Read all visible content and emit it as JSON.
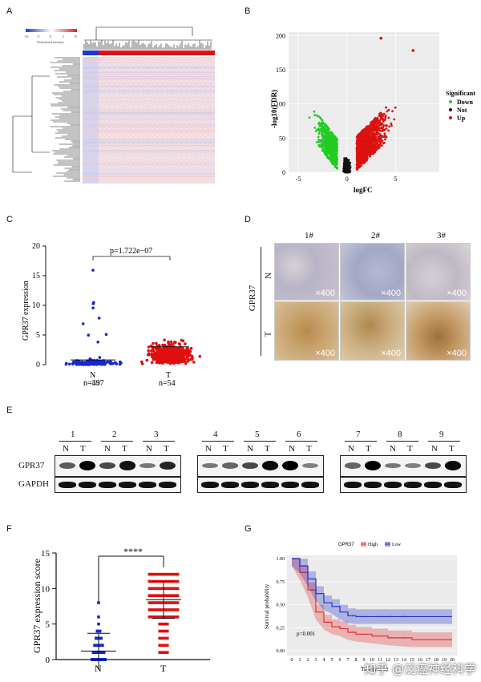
{
  "panels": {
    "a": "A",
    "b": "B",
    "c": "C",
    "d": "D",
    "e": "E",
    "f": "F",
    "g": "G"
  },
  "panel_a": {
    "legend_ticks": [
      "-10",
      "-5",
      "0",
      "5",
      "10"
    ],
    "legend_label": "Normalized intensity",
    "colors": {
      "low": "#2040c0",
      "mid": "#ffffff",
      "high": "#e02020"
    }
  },
  "chart_data": [
    {
      "id": "volcano",
      "type": "scatter",
      "xlabel": "logFC",
      "ylabel": "-log10(FDR)",
      "xticks": [
        "-5",
        "0",
        "5"
      ],
      "yticks": [
        "0",
        "50",
        "100",
        "150",
        "200"
      ],
      "xlim": [
        -6,
        9.5
      ],
      "ylim": [
        0,
        205
      ],
      "legend": {
        "title": "Significant",
        "items": [
          {
            "name": "Down",
            "color": "#22cc22"
          },
          {
            "name": "Not",
            "color": "#111111"
          },
          {
            "name": "Up",
            "color": "#dd1111"
          }
        ]
      },
      "outliers": [
        {
          "x": 3.5,
          "y": 196,
          "group": "Up"
        },
        {
          "x": 6.8,
          "y": 178,
          "group": "Up"
        }
      ]
    },
    {
      "id": "gpr37-dot",
      "type": "scatter",
      "ylabel": "GPR37 expression",
      "yticks": [
        "0",
        "5",
        "10",
        "15",
        "20"
      ],
      "ylim": [
        0,
        20
      ],
      "pvalue": "p=1.722e−07",
      "categories": [
        {
          "name": "N",
          "n": "n=497",
          "color": "#1428d8"
        },
        {
          "name": "T",
          "n": "n=54",
          "color": "#e01010"
        }
      ],
      "n_overlay": "n=54"
    },
    {
      "id": "ihc-score",
      "type": "scatter",
      "ylabel": "GPR37  expression score",
      "yticks": [
        "0",
        "5",
        "10",
        "15"
      ],
      "ylim": [
        0,
        15
      ],
      "significance": "****",
      "categories": [
        {
          "name": "N",
          "mean": 1.2,
          "sd": 2.5,
          "color": "#1428d8"
        },
        {
          "name": "T",
          "mean": 8.4,
          "sd": 2.6,
          "color": "#e01010"
        }
      ]
    },
    {
      "id": "survival",
      "type": "line",
      "ylabel": "Survival probability",
      "xlabel": "Time(years)",
      "yticks": [
        "0.00",
        "0.25",
        "0.50",
        "0.75",
        "1.00"
      ],
      "xticks": [
        "0",
        "1",
        "2",
        "3",
        "4",
        "5",
        "6",
        "7",
        "8",
        "9",
        "10",
        "11",
        "12",
        "13",
        "14",
        "15",
        "16",
        "17",
        "18",
        "19",
        "20"
      ],
      "legend_title": "GPR37",
      "series": [
        {
          "name": "High",
          "color": "#e03030",
          "x": [
            0,
            1,
            2,
            3,
            4,
            5,
            6,
            7,
            8,
            10,
            12,
            15,
            20
          ],
          "y": [
            1.0,
            0.85,
            0.66,
            0.42,
            0.31,
            0.26,
            0.24,
            0.2,
            0.18,
            0.16,
            0.14,
            0.12,
            0.12
          ]
        },
        {
          "name": "Low",
          "color": "#2030c8",
          "x": [
            0,
            1,
            2,
            3,
            4,
            5,
            6,
            7,
            8,
            10,
            12,
            15,
            20
          ],
          "y": [
            1.0,
            0.92,
            0.78,
            0.62,
            0.52,
            0.48,
            0.42,
            0.38,
            0.37,
            0.37,
            0.37,
            0.37,
            0.37
          ]
        }
      ],
      "pvalue": "p=0.001"
    }
  ],
  "panel_d": {
    "cols": [
      "1#",
      "2#",
      "3#"
    ],
    "rows": [
      "N",
      "T"
    ],
    "gene": "GPR37",
    "magnification": "×400"
  },
  "panel_e": {
    "groups": [
      {
        "lanes": [
          "1",
          "2",
          "3"
        ]
      },
      {
        "lanes": [
          "4",
          "5",
          "6"
        ]
      },
      {
        "lanes": [
          "7",
          "8",
          "9"
        ]
      }
    ],
    "nt": [
      "N",
      "T"
    ],
    "rows": [
      "GPR37",
      "GAPDH"
    ]
  },
  "watermark": "知乎 @泛癌神经科学"
}
